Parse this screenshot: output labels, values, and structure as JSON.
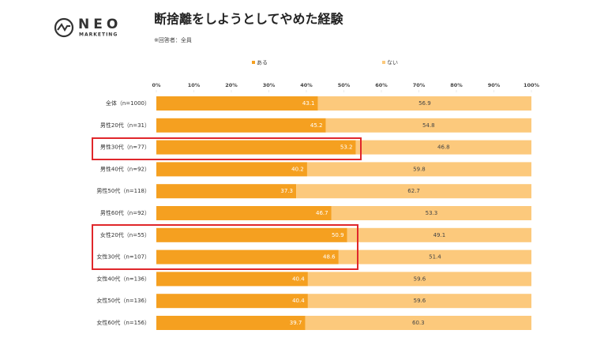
{
  "logo": {
    "name": "NEO",
    "sub": "MARKETING"
  },
  "chart_data": {
    "type": "stacked-barh",
    "title": "断捨離をしようとしてやめた経験",
    "subtitle": "※回答者：全員",
    "categories": [
      "全体（n=1000）",
      "男性20代（n=31）",
      "男性30代（n=77）",
      "男性40代（n=92）",
      "男性50代（n=118）",
      "男性60代（n=92）",
      "女性20代（n=55）",
      "女性30代（n=107）",
      "女性40代（n=136）",
      "女性50代（n=136）",
      "女性60代（n=156）"
    ],
    "series": [
      {
        "name": "ある",
        "color": "#f5a020",
        "values": [
          43.1,
          45.2,
          53.2,
          40.2,
          37.3,
          46.7,
          50.9,
          48.6,
          40.4,
          40.4,
          39.7
        ]
      },
      {
        "name": "ない",
        "color": "#fcc97c",
        "values": [
          56.9,
          54.8,
          46.8,
          59.8,
          62.7,
          53.3,
          49.1,
          51.4,
          59.6,
          59.6,
          60.3
        ]
      }
    ],
    "xlim": [
      0,
      100
    ],
    "xticks": [
      {
        "value": 0,
        "label": "0%"
      },
      {
        "value": 10,
        "label": "10%"
      },
      {
        "value": 20,
        "label": "20%"
      },
      {
        "value": 30,
        "label": "30%"
      },
      {
        "value": 40,
        "label": "40%"
      },
      {
        "value": 50,
        "label": "50%"
      },
      {
        "value": 60,
        "label": "60%"
      },
      {
        "value": 70,
        "label": "70%"
      },
      {
        "value": 80,
        "label": "80%"
      },
      {
        "value": 90,
        "label": "90%"
      },
      {
        "value": 100,
        "label": "100%"
      }
    ],
    "grid": false,
    "legend": "top"
  }
}
